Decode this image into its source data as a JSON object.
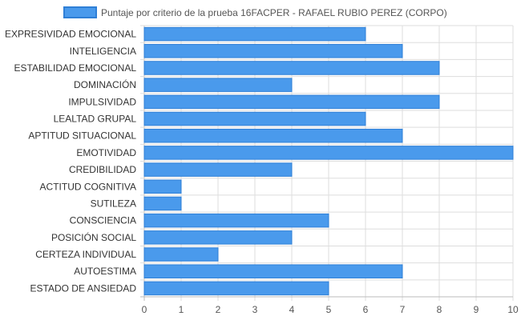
{
  "chart_data": {
    "type": "bar",
    "orientation": "horizontal",
    "legend": {
      "label": "Puntaje por criterio de la prueba 16FACPER - RAFAEL RUBIO PEREZ (CORPO)",
      "placement": "top"
    },
    "categories": [
      "EXPRESIVIDAD EMOCIONAL",
      "INTELIGENCIA",
      "ESTABILIDAD EMOCIONAL",
      "DOMINACIÓN",
      "IMPULSIVIDAD",
      "LEALTAD GRUPAL",
      "APTITUD SITUACIONAL",
      "EMOTIVIDAD",
      "CREDIBILIDAD",
      "ACTITUD COGNITIVA",
      "SUTILEZA",
      "CONSCIENCIA",
      "POSICIÓN SOCIAL",
      "CERTEZA INDIVIDUAL",
      "AUTOESTIMA",
      "ESTADO DE ANSIEDAD"
    ],
    "series": [
      {
        "name": "Puntaje por criterio de la prueba 16FACPER - RAFAEL RUBIO PEREZ (CORPO)",
        "values": [
          6,
          7,
          8,
          4,
          8,
          6,
          7,
          10,
          4,
          1,
          1,
          5,
          4,
          2,
          7,
          5
        ]
      }
    ],
    "xlim": [
      0,
      10
    ],
    "xticks": [
      "0",
      "1",
      "2",
      "3",
      "4",
      "5",
      "6",
      "7",
      "8",
      "9",
      "10"
    ],
    "grid": true,
    "colors": {
      "bar_fill": "#4a9aec",
      "bar_stroke": "#2f7fd6",
      "grid": "#dddddd",
      "axis": "#bbbbbb"
    }
  }
}
